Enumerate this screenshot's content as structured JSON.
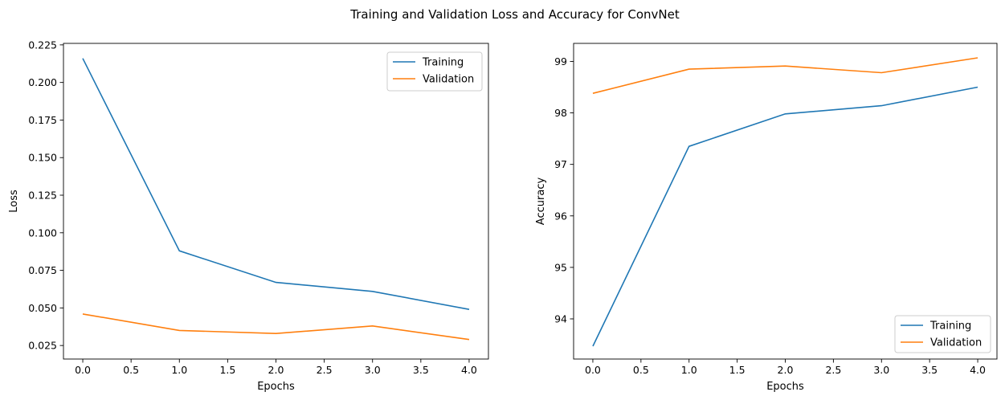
{
  "figure": {
    "title": "Training and Validation Loss and Accuracy for ConvNet"
  },
  "chart_data": [
    {
      "type": "line",
      "title": "",
      "xlabel": "Epochs",
      "ylabel": "Loss",
      "xlim": [
        -0.2,
        4.2
      ],
      "ylim": [
        0.016,
        0.226
      ],
      "xticks": [
        0.0,
        0.5,
        1.0,
        1.5,
        2.0,
        2.5,
        3.0,
        3.5,
        4.0
      ],
      "xtick_labels": [
        "0.0",
        "0.5",
        "1.0",
        "1.5",
        "2.0",
        "2.5",
        "3.0",
        "3.5",
        "4.0"
      ],
      "yticks": [
        0.025,
        0.05,
        0.075,
        0.1,
        0.125,
        0.15,
        0.175,
        0.2,
        0.225
      ],
      "ytick_labels": [
        "0.025",
        "0.050",
        "0.075",
        "0.100",
        "0.125",
        "0.150",
        "0.175",
        "0.200",
        "0.225"
      ],
      "grid": false,
      "legend": "top-right",
      "x": [
        0,
        1,
        2,
        3,
        4
      ],
      "series": [
        {
          "name": "Training",
          "color": "#1f77b4",
          "values": [
            0.216,
            0.088,
            0.067,
            0.061,
            0.049
          ]
        },
        {
          "name": "Validation",
          "color": "#ff7f0e",
          "values": [
            0.046,
            0.035,
            0.033,
            0.038,
            0.029
          ]
        }
      ]
    },
    {
      "type": "line",
      "title": "",
      "xlabel": "Epochs",
      "ylabel": "Accuracy",
      "xlim": [
        -0.2,
        4.2
      ],
      "ylim": [
        93.22,
        99.35
      ],
      "xticks": [
        0.0,
        0.5,
        1.0,
        1.5,
        2.0,
        2.5,
        3.0,
        3.5,
        4.0
      ],
      "xtick_labels": [
        "0.0",
        "0.5",
        "1.0",
        "1.5",
        "2.0",
        "2.5",
        "3.0",
        "3.5",
        "4.0"
      ],
      "yticks": [
        94,
        95,
        96,
        97,
        98,
        99
      ],
      "ytick_labels": [
        "94",
        "95",
        "96",
        "97",
        "98",
        "99"
      ],
      "grid": false,
      "legend": "bottom-right",
      "x": [
        0,
        1,
        2,
        3,
        4
      ],
      "series": [
        {
          "name": "Training",
          "color": "#1f77b4",
          "values": [
            93.47,
            97.35,
            97.98,
            98.14,
            98.5
          ]
        },
        {
          "name": "Validation",
          "color": "#ff7f0e",
          "values": [
            98.38,
            98.85,
            98.91,
            98.78,
            99.07
          ]
        }
      ]
    }
  ]
}
